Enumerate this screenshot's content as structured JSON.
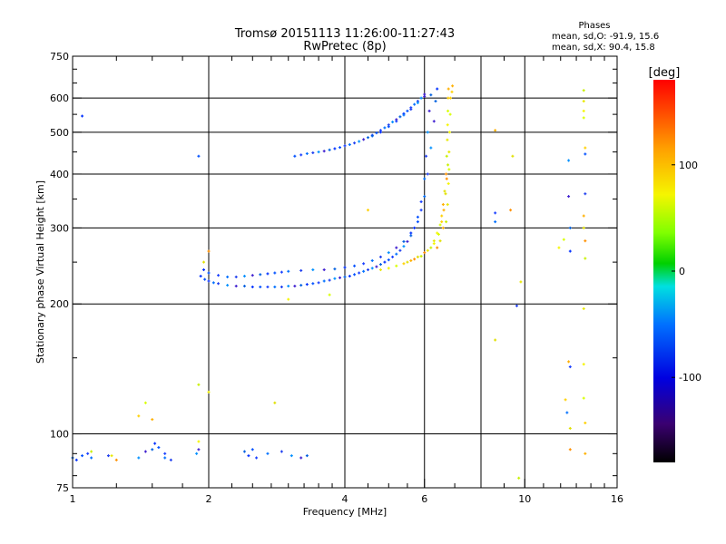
{
  "chart_data": {
    "type": "scatter",
    "title": "Tromsø 20151113 11:26:00-11:27:43",
    "subtitle": "RwPretec (8p)",
    "xlabel": "Frequency [MHz]",
    "ylabel": "Stationary phase Virtual Height [km]",
    "x_scale": "log2",
    "y_scale": "log",
    "xlim": [
      1,
      16
    ],
    "ylim": [
      75,
      750
    ],
    "x_ticks": [
      1,
      2,
      4,
      6,
      10,
      16
    ],
    "x_ticklabels": [
      "1",
      "2",
      "4",
      "6",
      "10",
      "16"
    ],
    "y_ticks": [
      75,
      100,
      200,
      300,
      400,
      500,
      600,
      750
    ],
    "y_ticklabels": [
      "75",
      "100",
      "200",
      "300",
      "400",
      "500",
      "600",
      "750"
    ],
    "x_gridlines": [
      2,
      4,
      6,
      8,
      10
    ],
    "y_gridlines": [
      100,
      200,
      300,
      400,
      500,
      600
    ],
    "grid": true,
    "phases_info": {
      "heading": "Phases",
      "line_o": "mean, sd,O: -91.9, 15.6",
      "line_x": "mean, sd,X:  90.4, 15.8"
    },
    "colorbar": {
      "label": "[deg]",
      "range": [
        -180,
        180
      ],
      "ticks": [
        100,
        0,
        -100
      ],
      "ticklabels": [
        "100",
        "0",
        "-100"
      ]
    },
    "series": [
      {
        "points": [
          [
            1.92,
            232
          ],
          [
            1.96,
            228
          ],
          [
            2.0,
            226
          ],
          [
            2.05,
            224
          ],
          [
            2.1,
            223
          ],
          [
            2.2,
            221
          ],
          [
            2.3,
            220
          ],
          [
            2.4,
            220
          ],
          [
            2.5,
            219
          ],
          [
            2.6,
            219
          ],
          [
            2.7,
            219
          ],
          [
            2.8,
            219
          ],
          [
            2.9,
            219
          ],
          [
            3.0,
            220
          ],
          [
            3.1,
            220
          ],
          [
            3.2,
            221
          ],
          [
            3.3,
            222
          ],
          [
            3.4,
            223
          ],
          [
            3.5,
            224
          ],
          [
            3.6,
            226
          ],
          [
            3.7,
            227
          ],
          [
            3.8,
            229
          ],
          [
            3.9,
            230
          ],
          [
            4.0,
            231
          ],
          [
            4.1,
            232
          ],
          [
            4.2,
            234
          ],
          [
            4.3,
            236
          ],
          [
            4.4,
            238
          ],
          [
            4.5,
            240
          ],
          [
            4.6,
            242
          ],
          [
            4.7,
            244
          ],
          [
            4.8,
            247
          ],
          [
            4.9,
            250
          ],
          [
            5.0,
            253
          ],
          [
            5.1,
            257
          ],
          [
            5.2,
            261
          ],
          [
            5.3,
            266
          ],
          [
            5.4,
            272
          ],
          [
            5.5,
            279
          ],
          [
            5.6,
            288
          ],
          [
            5.7,
            300
          ],
          [
            5.8,
            318
          ],
          [
            5.9,
            345
          ],
          [
            6.0,
            390
          ],
          [
            6.05,
            440
          ],
          [
            6.1,
            500
          ],
          [
            6.15,
            560
          ],
          [
            6.2,
            610
          ],
          [
            1.95,
            240
          ],
          [
            2.0,
            236
          ],
          [
            2.1,
            233
          ],
          [
            2.2,
            231
          ],
          [
            2.3,
            231
          ],
          [
            2.4,
            232
          ],
          [
            2.5,
            233
          ],
          [
            2.6,
            234
          ],
          [
            2.7,
            235
          ],
          [
            2.8,
            236
          ],
          [
            2.9,
            237
          ],
          [
            3.0,
            238
          ],
          [
            3.2,
            239
          ],
          [
            3.4,
            240
          ],
          [
            3.6,
            240
          ],
          [
            3.8,
            241
          ],
          [
            4.0,
            243
          ],
          [
            4.2,
            245
          ],
          [
            4.4,
            248
          ],
          [
            4.6,
            252
          ],
          [
            4.8,
            257
          ],
          [
            5.0,
            263
          ],
          [
            5.2,
            270
          ],
          [
            5.4,
            279
          ],
          [
            5.6,
            292
          ],
          [
            5.8,
            310
          ],
          [
            5.9,
            330
          ],
          [
            6.0,
            355
          ],
          [
            6.1,
            400
          ],
          [
            6.2,
            460
          ],
          [
            6.3,
            530
          ],
          [
            6.35,
            590
          ],
          [
            6.4,
            630
          ],
          [
            3.1,
            440
          ],
          [
            3.2,
            443
          ],
          [
            3.3,
            446
          ],
          [
            3.4,
            448
          ],
          [
            3.5,
            450
          ],
          [
            3.6,
            452
          ],
          [
            3.7,
            455
          ],
          [
            3.8,
            458
          ],
          [
            3.9,
            461
          ],
          [
            4.0,
            465
          ],
          [
            4.1,
            468
          ],
          [
            4.2,
            472
          ],
          [
            4.3,
            476
          ],
          [
            4.4,
            481
          ],
          [
            4.5,
            486
          ],
          [
            4.6,
            492
          ],
          [
            4.7,
            498
          ],
          [
            4.8,
            505
          ],
          [
            4.9,
            512
          ],
          [
            5.0,
            520
          ],
          [
            5.1,
            528
          ],
          [
            5.2,
            535
          ],
          [
            5.3,
            543
          ],
          [
            5.4,
            552
          ],
          [
            5.5,
            560
          ],
          [
            5.6,
            570
          ],
          [
            5.7,
            580
          ],
          [
            5.8,
            590
          ],
          [
            5.9,
            600
          ],
          [
            6.0,
            612
          ],
          [
            4.6,
            490
          ],
          [
            4.8,
            500
          ],
          [
            5.0,
            515
          ],
          [
            5.2,
            530
          ],
          [
            5.4,
            548
          ],
          [
            5.6,
            565
          ],
          [
            5.8,
            585
          ],
          [
            6.0,
            605
          ],
          [
            1.0,
            88
          ],
          [
            1.02,
            87
          ],
          [
            1.05,
            89
          ],
          [
            1.08,
            90
          ],
          [
            1.1,
            88
          ],
          [
            1.2,
            89
          ],
          [
            1.4,
            88
          ],
          [
            1.45,
            91
          ],
          [
            1.5,
            92
          ],
          [
            1.52,
            95
          ],
          [
            1.55,
            93
          ],
          [
            1.6,
            90
          ],
          [
            1.6,
            88
          ],
          [
            1.65,
            87
          ],
          [
            1.88,
            90
          ],
          [
            1.9,
            92
          ],
          [
            2.4,
            91
          ],
          [
            2.45,
            89
          ],
          [
            2.5,
            92
          ],
          [
            2.55,
            88
          ],
          [
            2.7,
            90
          ],
          [
            2.9,
            91
          ],
          [
            3.05,
            89
          ],
          [
            3.2,
            88
          ],
          [
            3.3,
            89
          ],
          [
            1.05,
            545
          ],
          [
            1.9,
            440
          ],
          [
            8.6,
            325
          ],
          [
            8.6,
            310
          ],
          [
            9.6,
            198
          ],
          [
            12.5,
            430
          ],
          [
            12.5,
            355
          ],
          [
            12.6,
            300
          ],
          [
            12.6,
            265
          ],
          [
            13.6,
            445
          ],
          [
            12.6,
            143
          ],
          [
            12.4,
            112
          ],
          [
            13.6,
            360
          ]
        ]
      },
      {
        "points": [
          [
            4.8,
            240
          ],
          [
            5.0,
            242
          ],
          [
            5.2,
            245
          ],
          [
            5.4,
            248
          ],
          [
            5.6,
            252
          ],
          [
            5.8,
            257
          ],
          [
            6.0,
            263
          ],
          [
            6.2,
            270
          ],
          [
            6.3,
            280
          ],
          [
            6.4,
            292
          ],
          [
            6.5,
            305
          ],
          [
            6.55,
            320
          ],
          [
            6.6,
            340
          ],
          [
            6.65,
            365
          ],
          [
            6.7,
            400
          ],
          [
            6.72,
            440
          ],
          [
            6.74,
            480
          ],
          [
            6.75,
            520
          ],
          [
            6.76,
            560
          ],
          [
            6.77,
            600
          ],
          [
            6.78,
            630
          ],
          [
            5.5,
            250
          ],
          [
            5.7,
            254
          ],
          [
            5.9,
            258
          ],
          [
            6.1,
            266
          ],
          [
            6.3,
            276
          ],
          [
            6.45,
            290
          ],
          [
            6.55,
            310
          ],
          [
            6.62,
            330
          ],
          [
            6.68,
            360
          ],
          [
            6.72,
            390
          ],
          [
            6.76,
            420
          ],
          [
            6.8,
            450
          ],
          [
            6.82,
            500
          ],
          [
            6.84,
            550
          ],
          [
            6.85,
            600
          ],
          [
            6.6,
            300
          ],
          [
            6.5,
            280
          ],
          [
            6.4,
            270
          ],
          [
            6.7,
            310
          ],
          [
            6.75,
            340
          ],
          [
            6.78,
            380
          ],
          [
            6.8,
            410
          ],
          [
            6.9,
            620
          ],
          [
            6.92,
            640
          ],
          [
            1.95,
            250
          ],
          [
            2.0,
            265
          ],
          [
            1.9,
            130
          ],
          [
            2.0,
            125
          ],
          [
            1.9,
            96
          ],
          [
            1.45,
            118
          ],
          [
            1.4,
            110
          ],
          [
            1.5,
            108
          ],
          [
            2.8,
            118
          ],
          [
            1.25,
            87
          ],
          [
            1.1,
            91
          ],
          [
            1.22,
            89
          ],
          [
            3.0,
            205
          ],
          [
            3.7,
            210
          ],
          [
            4.5,
            330
          ],
          [
            8.6,
            505
          ],
          [
            8.6,
            165
          ],
          [
            9.3,
            330
          ],
          [
            9.7,
            79
          ],
          [
            9.8,
            225
          ],
          [
            11.9,
            270
          ],
          [
            12.2,
            282
          ],
          [
            12.3,
            120
          ],
          [
            12.5,
            147
          ],
          [
            12.6,
            103
          ],
          [
            12.6,
            92
          ],
          [
            13.5,
            625
          ],
          [
            13.5,
            590
          ],
          [
            13.5,
            560
          ],
          [
            13.5,
            540
          ],
          [
            13.6,
            460
          ],
          [
            13.5,
            320
          ],
          [
            13.5,
            300
          ],
          [
            13.6,
            280
          ],
          [
            13.6,
            255
          ],
          [
            13.5,
            195
          ],
          [
            13.5,
            145
          ],
          [
            13.5,
            121
          ],
          [
            13.6,
            106
          ],
          [
            13.6,
            90
          ],
          [
            9.4,
            440
          ]
        ]
      }
    ]
  }
}
